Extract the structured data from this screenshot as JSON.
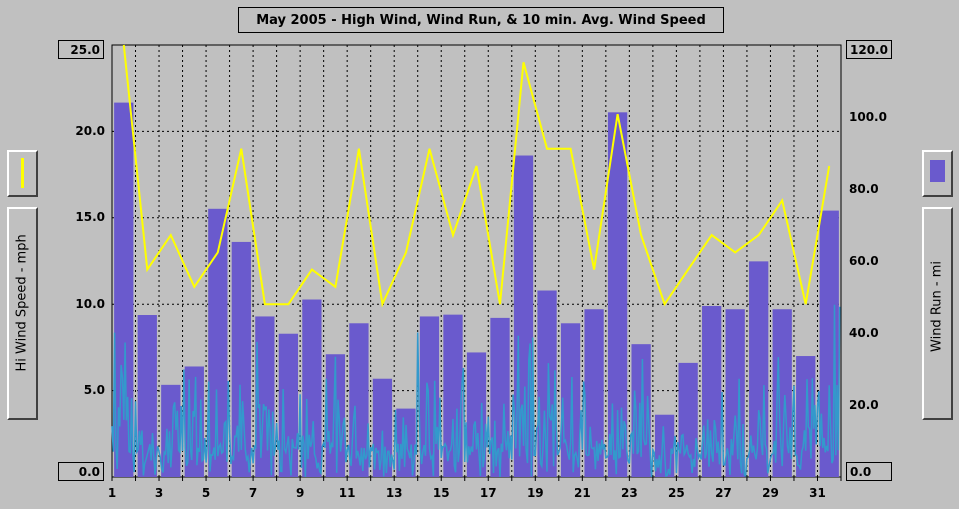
{
  "chart_data": {
    "type": "bar",
    "title": "May 2005 - High Wind, Wind Run, & 10 min. Avg. Wind Speed",
    "left_axis": {
      "label": "Hi Wind Speed - mph",
      "ylim": [
        0,
        25
      ],
      "ticks": [
        "0.0",
        "5.0",
        "10.0",
        "15.0",
        "20.0",
        "25.0"
      ]
    },
    "right_axis": {
      "label": "Wind Run - mi",
      "ylim": [
        0,
        120
      ],
      "ticks": [
        "0.0",
        "20.0",
        "40.0",
        "60.0",
        "80.0",
        "100.0",
        "120.0"
      ]
    },
    "x_axis": {
      "range": [
        1,
        32
      ],
      "tick_labels": [
        "1",
        "3",
        "5",
        "7",
        "9",
        "11",
        "13",
        "15",
        "17",
        "19",
        "21",
        "23",
        "25",
        "27",
        "29",
        "31"
      ]
    },
    "grid": true,
    "series": [
      {
        "kind": "bar",
        "axis": "right",
        "color": "#6a5acd",
        "days": [
          1,
          2,
          3,
          4,
          5,
          6,
          7,
          8,
          9,
          10,
          11,
          12,
          13,
          14,
          15,
          16,
          17,
          18,
          19,
          20,
          21,
          22,
          23,
          24,
          25,
          26,
          27,
          28,
          29,
          30,
          31
        ],
        "values": [
          104,
          45,
          25.6,
          30.7,
          74.5,
          65.3,
          44.6,
          39.8,
          49.3,
          34.1,
          42.7,
          27.3,
          19,
          44.6,
          45.1,
          34.6,
          44.2,
          89.3,
          51.8,
          42.7,
          46.6,
          101.3,
          36.9,
          17.3,
          31.7,
          47.5,
          46.6,
          59.9,
          46.6,
          33.6,
          74
        ]
      },
      {
        "kind": "line",
        "axis": "left",
        "color": "#ffff00",
        "days": [
          1,
          2,
          3,
          4,
          5,
          6,
          7,
          8,
          9,
          10,
          11,
          12,
          13,
          14,
          15,
          16,
          17,
          18,
          19,
          20,
          21,
          22,
          23,
          24,
          25,
          26,
          27,
          28,
          29,
          30,
          31
        ],
        "values": [
          25,
          12,
          14,
          11,
          13,
          19,
          10,
          10,
          12,
          11,
          19,
          10,
          13,
          19,
          14,
          18,
          10,
          24,
          19,
          19,
          12,
          21,
          14,
          10,
          12,
          14,
          13,
          14,
          16,
          10,
          18
        ]
      },
      {
        "kind": "line",
        "axis": "left",
        "color": "#3399cc",
        "description_free": true,
        "daily_peaks": [
          10,
          6,
          5,
          7,
          6,
          8,
          9,
          6,
          5,
          7,
          6,
          4,
          5,
          9,
          7,
          6,
          5,
          10,
          7,
          8,
          6,
          11,
          9,
          3,
          4,
          5,
          6,
          7,
          8,
          6,
          10
        ]
      }
    ]
  }
}
